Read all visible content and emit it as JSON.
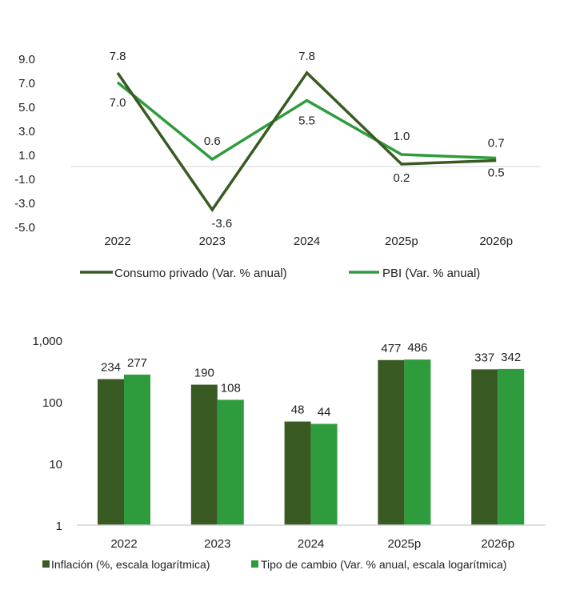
{
  "colors": {
    "dark": "#3a5a24",
    "green": "#2e9c3c",
    "grid": "#d4d4d4"
  },
  "chart_data": [
    {
      "type": "line",
      "categories": [
        "2022",
        "2023",
        "2024",
        "2025p",
        "2026p"
      ],
      "series": [
        {
          "name": "Consumo privado (Var. % anual)",
          "values": [
            7.8,
            -3.6,
            7.8,
            0.2,
            0.5
          ],
          "labels": [
            "7.8",
            "-3.6",
            "7.8",
            "0.2",
            "0.5"
          ]
        },
        {
          "name": "PBI (Var. % anual)",
          "values": [
            7.0,
            0.6,
            5.5,
            1.0,
            0.7
          ],
          "labels": [
            "7.0",
            "0.6",
            "5.5",
            "1.0",
            "0.7"
          ]
        }
      ],
      "yticks": [
        "9.0",
        "7.0",
        "5.0",
        "3.0",
        "1.0",
        "-1.0",
        "-3.0",
        "-5.0"
      ],
      "ylim": [
        -5,
        9
      ],
      "legend": "bottom"
    },
    {
      "type": "bar",
      "scale": "log",
      "categories": [
        "2022",
        "2023",
        "2024",
        "2025p",
        "2026p"
      ],
      "series": [
        {
          "name": "Inflación (%, escala logarítmica)",
          "values": [
            234,
            190,
            48,
            477,
            337
          ],
          "labels": [
            "234",
            "190",
            "48",
            "477",
            "337"
          ]
        },
        {
          "name": "Tipo de cambio  (Var. % anual, escala logarítmica)",
          "values": [
            277,
            108,
            44,
            486,
            342
          ],
          "labels": [
            "277",
            "108",
            "44",
            "486",
            "342"
          ]
        }
      ],
      "yticks": [
        "1,000",
        "100",
        "10",
        "1"
      ],
      "ylim": [
        1,
        1000
      ],
      "legend": "bottom"
    }
  ]
}
